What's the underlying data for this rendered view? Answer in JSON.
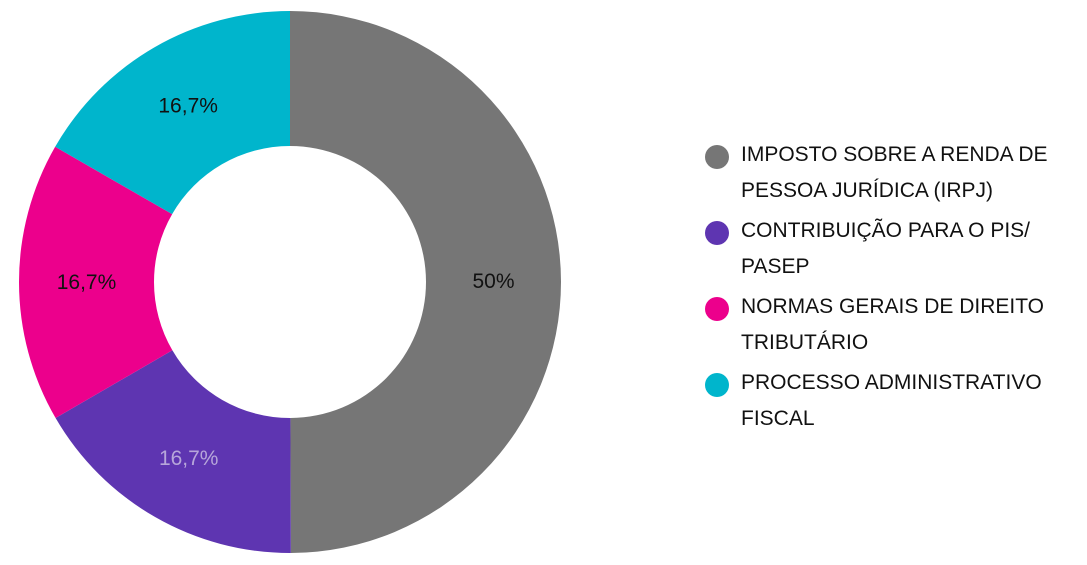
{
  "chart_data": {
    "type": "pie",
    "donut": true,
    "title": "",
    "labels": [
      "IMPOSTO SOBRE A RENDA DE PESSOA JURÍDICA (IRPJ)",
      "CONTRIBUIÇÃO PARA O PIS/ PASEP",
      "NORMAS GERAIS DE DIREITO TRIBUTÁRIO",
      "PROCESSO ADMINISTRATIVO FISCAL"
    ],
    "values": [
      50,
      16.7,
      16.7,
      16.7
    ],
    "value_labels": [
      "50%",
      "16,7%",
      "16,7%",
      "16,7%"
    ],
    "colors": [
      "#767676",
      "#5E35B1",
      "#EC008C",
      "#00B5CC"
    ],
    "label_colors": [
      "#111111",
      "#B7A6DA",
      "#111111",
      "#111111"
    ],
    "legend_position": "right"
  }
}
